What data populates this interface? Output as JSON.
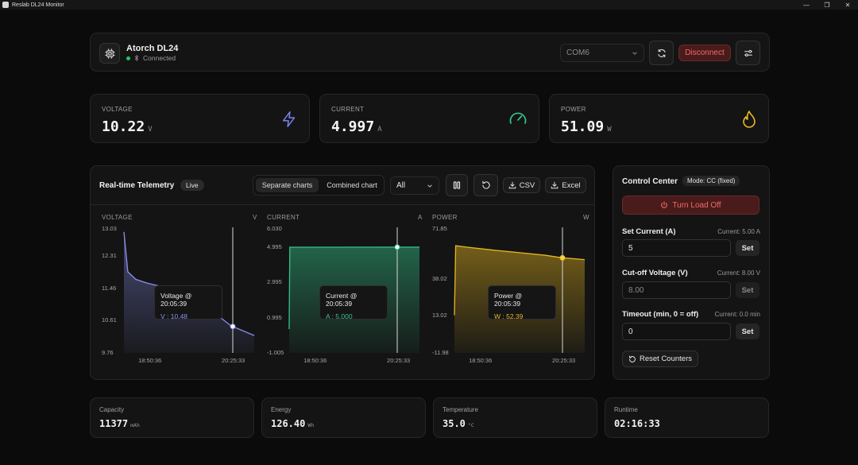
{
  "window": {
    "title": "Reslab DL24 Monitor"
  },
  "device": {
    "name": "Atorch DL24",
    "status": "Connected",
    "port": "COM6",
    "disconnect_label": "Disconnect"
  },
  "stats": {
    "voltage": {
      "label": "VOLTAGE",
      "value": "10.22",
      "unit": "V"
    },
    "current": {
      "label": "CURRENT",
      "value": "4.997",
      "unit": "A"
    },
    "power": {
      "label": "POWER",
      "value": "51.09",
      "unit": "W"
    }
  },
  "telemetry": {
    "title": "Real-time Telemetry",
    "badge": "Live",
    "view_options": [
      "Separate charts",
      "Combined chart"
    ],
    "active_view": "Separate charts",
    "range": "All",
    "csv_label": "CSV",
    "excel_label": "Excel"
  },
  "chart_data": [
    {
      "type": "area",
      "title": "VOLTAGE",
      "ylabel": "V",
      "y_ticks": [
        "13.03",
        "12.31",
        "11.46",
        "10.61",
        "9.76"
      ],
      "ylim": [
        9.76,
        13.03
      ],
      "x_ticks": [
        "18:50:36",
        "20:25:33"
      ],
      "color": "#8b8ff0",
      "series": [
        {
          "points": [
            [
              0,
              12.95
            ],
            [
              0.03,
              11.9
            ],
            [
              0.09,
              11.7
            ],
            [
              0.18,
              11.6
            ],
            [
              0.3,
              11.5
            ],
            [
              0.45,
              11.2
            ],
            [
              0.6,
              10.95
            ],
            [
              0.72,
              10.75
            ],
            [
              0.82,
              10.48
            ],
            [
              1.0,
              10.22
            ]
          ]
        }
      ],
      "tooltip": {
        "title": "Voltage @ 20:05:39",
        "label": "V : 10.48"
      }
    },
    {
      "type": "area",
      "title": "CURRENT",
      "ylabel": "A",
      "y_ticks": [
        "6.030",
        "4.995",
        "2.995",
        "0.995",
        "-1.005"
      ],
      "ylim": [
        -1.005,
        6.03
      ],
      "x_ticks": [
        "18:50:36",
        "20:25:33"
      ],
      "color": "#35c48c",
      "series": [
        {
          "points": [
            [
              0,
              0.35
            ],
            [
              0.005,
              4.995
            ],
            [
              1.0,
              4.997
            ]
          ]
        }
      ],
      "tooltip": {
        "title": "Current @ 20:05:39",
        "label": "A : 5.000"
      }
    },
    {
      "type": "area",
      "title": "POWER",
      "ylabel": "W",
      "y_ticks": [
        "71.85",
        "38.02",
        "13.02",
        "-11.98"
      ],
      "ylim": [
        -11.98,
        71.85
      ],
      "x_ticks": [
        "18:50:36",
        "20:25:33"
      ],
      "color": "#e8b820",
      "series": [
        {
          "points": [
            [
              0,
              13.5
            ],
            [
              0.01,
              60.5
            ],
            [
              0.1,
              59.5
            ],
            [
              0.3,
              57.5
            ],
            [
              0.5,
              55.8
            ],
            [
              0.7,
              54.0
            ],
            [
              0.82,
              52.39
            ],
            [
              1.0,
              51.09
            ]
          ]
        }
      ],
      "tooltip": {
        "title": "Power @ 20:05:39",
        "label": "W : 52.39"
      }
    }
  ],
  "control": {
    "title": "Control Center",
    "mode": "Mode: CC (fixed)",
    "load_button": "Turn Load Off",
    "set_current": {
      "label": "Set Current (A)",
      "current": "Current: 5.00 A",
      "value": "5",
      "button": "Set"
    },
    "cutoff": {
      "label": "Cut-off Voltage (V)",
      "current": "Current: 8.00 V",
      "placeholder": "8.00",
      "button": "Set"
    },
    "timeout": {
      "label": "Timeout (min, 0 = off)",
      "current": "Current: 0.0 min",
      "value": "0",
      "button": "Set"
    },
    "reset_label": "Reset Counters"
  },
  "bottom": {
    "capacity": {
      "label": "Capacity",
      "value": "11377",
      "unit": "mAh"
    },
    "energy": {
      "label": "Energy",
      "value": "126.40",
      "unit": "Wh"
    },
    "temperature": {
      "label": "Temperature",
      "value": "35.0",
      "unit": "°C"
    },
    "runtime": {
      "label": "Runtime",
      "value": "02:16:33"
    }
  },
  "colors": {
    "accent_voltage": "#8b8ff0",
    "accent_current": "#35c48c",
    "accent_power": "#e8b820",
    "danger": "#ef6a6a",
    "connected": "#22c55e"
  }
}
